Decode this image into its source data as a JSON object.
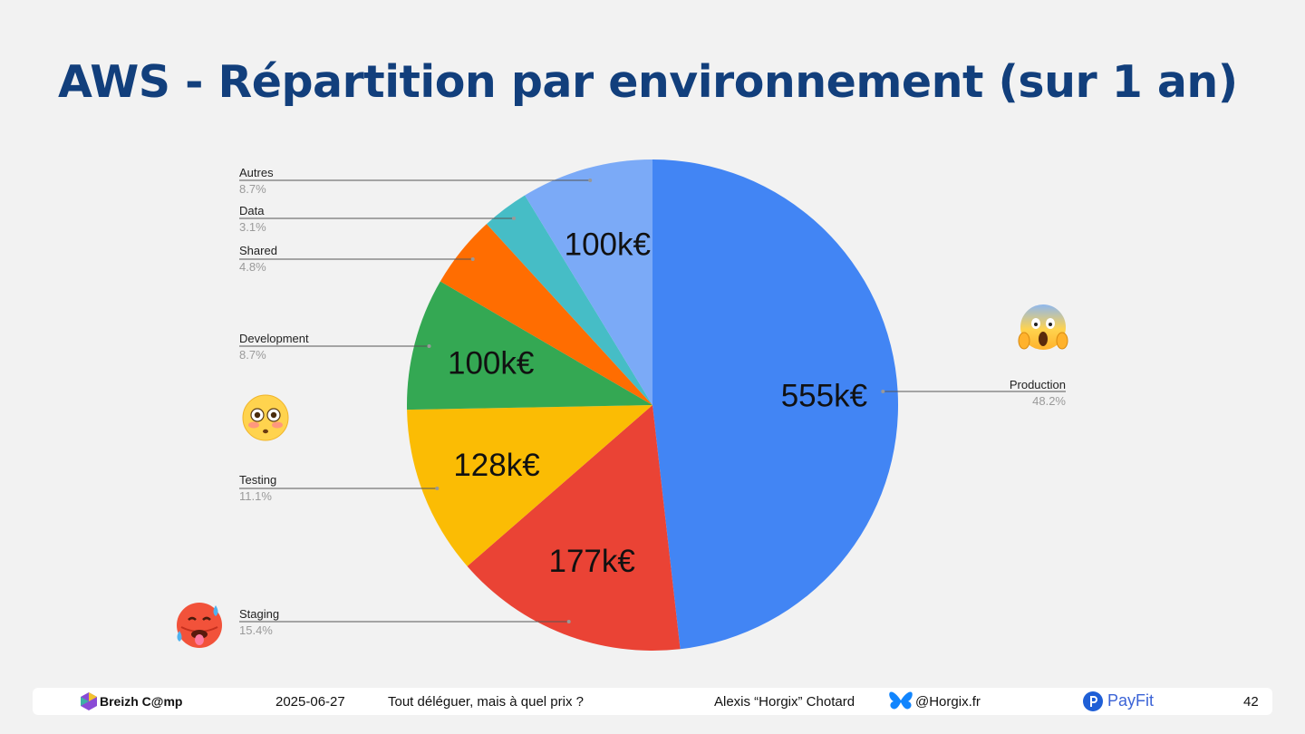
{
  "slide": {
    "title": "AWS - Répartition par environnement (sur 1 an)"
  },
  "chart_data": {
    "type": "pie",
    "slices": [
      {
        "label": "Production",
        "percent": 48.2,
        "value_label": "555k€",
        "color": "#4285f4"
      },
      {
        "label": "Staging",
        "percent": 15.4,
        "value_label": "177k€",
        "color": "#ea4335"
      },
      {
        "label": "Testing",
        "percent": 11.1,
        "value_label": "128k€",
        "color": "#fbbc04"
      },
      {
        "label": "Development",
        "percent": 8.7,
        "value_label": "100k€",
        "color": "#34a853"
      },
      {
        "label": "Shared",
        "percent": 4.8,
        "value_label": "",
        "color": "#ff6d01"
      },
      {
        "label": "Data",
        "percent": 3.1,
        "value_label": "",
        "color": "#46bdc6"
      },
      {
        "label": "Autres",
        "percent": 8.7,
        "value_label": "100k€",
        "color": "#7baaf7"
      }
    ],
    "percent_labels": [
      "48.2%",
      "15.4%",
      "11.1%",
      "8.7%",
      "4.8%",
      "3.1%",
      "8.7%"
    ]
  },
  "emojis": [
    {
      "name": "face-screaming-in-fear-icon",
      "near": "Production"
    },
    {
      "name": "flushed-face-icon",
      "near": "Development"
    },
    {
      "name": "hot-face-icon",
      "near": "Staging"
    }
  ],
  "footer": {
    "brand": "Breizh C@mp",
    "date": "2025-06-27",
    "talk_title": "Tout déléguer, mais à quel prix ?",
    "speaker": "Alexis “Horgix” Chotard",
    "handle": "@Horgix.fr",
    "company": "PayFit",
    "page_number": "42"
  }
}
